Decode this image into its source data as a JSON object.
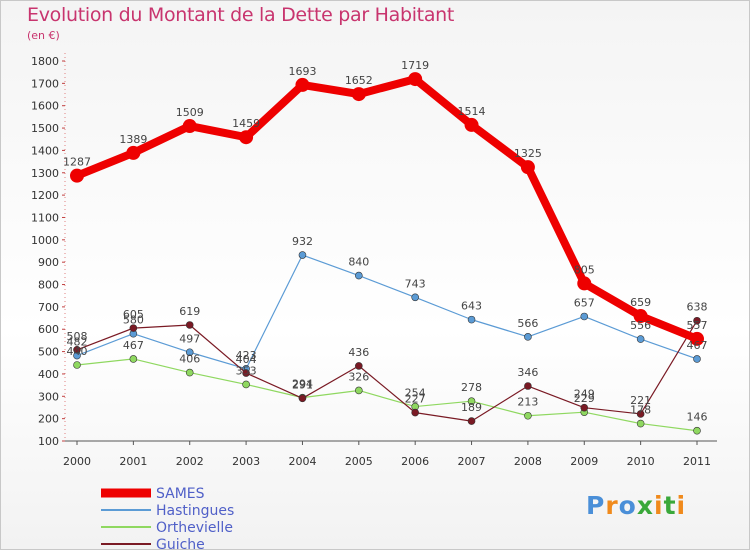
{
  "title": "Evolution du Montant de la Dette par Habitant",
  "subtitle": "(en €)",
  "logo_text": "Proxiti",
  "chart_data": {
    "type": "line",
    "title": "Evolution du Montant de la Dette par Habitant",
    "ylabel": "(en €)",
    "xlabel": "",
    "x": [
      "2000",
      "2001",
      "2002",
      "2003",
      "2004",
      "2005",
      "2006",
      "2007",
      "2008",
      "2009",
      "2010",
      "2011"
    ],
    "ylim": [
      100,
      1800
    ],
    "yticks": [
      100,
      200,
      300,
      400,
      500,
      600,
      700,
      800,
      900,
      1000,
      1100,
      1200,
      1300,
      1400,
      1500,
      1600,
      1700,
      1800
    ],
    "grid": false,
    "legend_position": "bottom-left",
    "series": [
      {
        "name": "SAMES",
        "color": "#ee0000",
        "values": [
          1287,
          1389,
          1509,
          1459,
          1693,
          1652,
          1719,
          1514,
          1325,
          805,
          659,
          557
        ]
      },
      {
        "name": "Hastingues",
        "color": "#5b9bd5",
        "values": [
          482,
          580,
          497,
          423,
          932,
          840,
          743,
          643,
          566,
          657,
          556,
          467
        ]
      },
      {
        "name": "Orthevielle",
        "color": "#8fd860",
        "values": [
          440,
          467,
          406,
          353,
          294,
          326,
          254,
          278,
          213,
          229,
          178,
          146
        ]
      },
      {
        "name": "Guiche",
        "color": "#7a1a24",
        "values": [
          508,
          605,
          619,
          404,
          291,
          436,
          227,
          189,
          346,
          249,
          221,
          638
        ]
      }
    ]
  }
}
